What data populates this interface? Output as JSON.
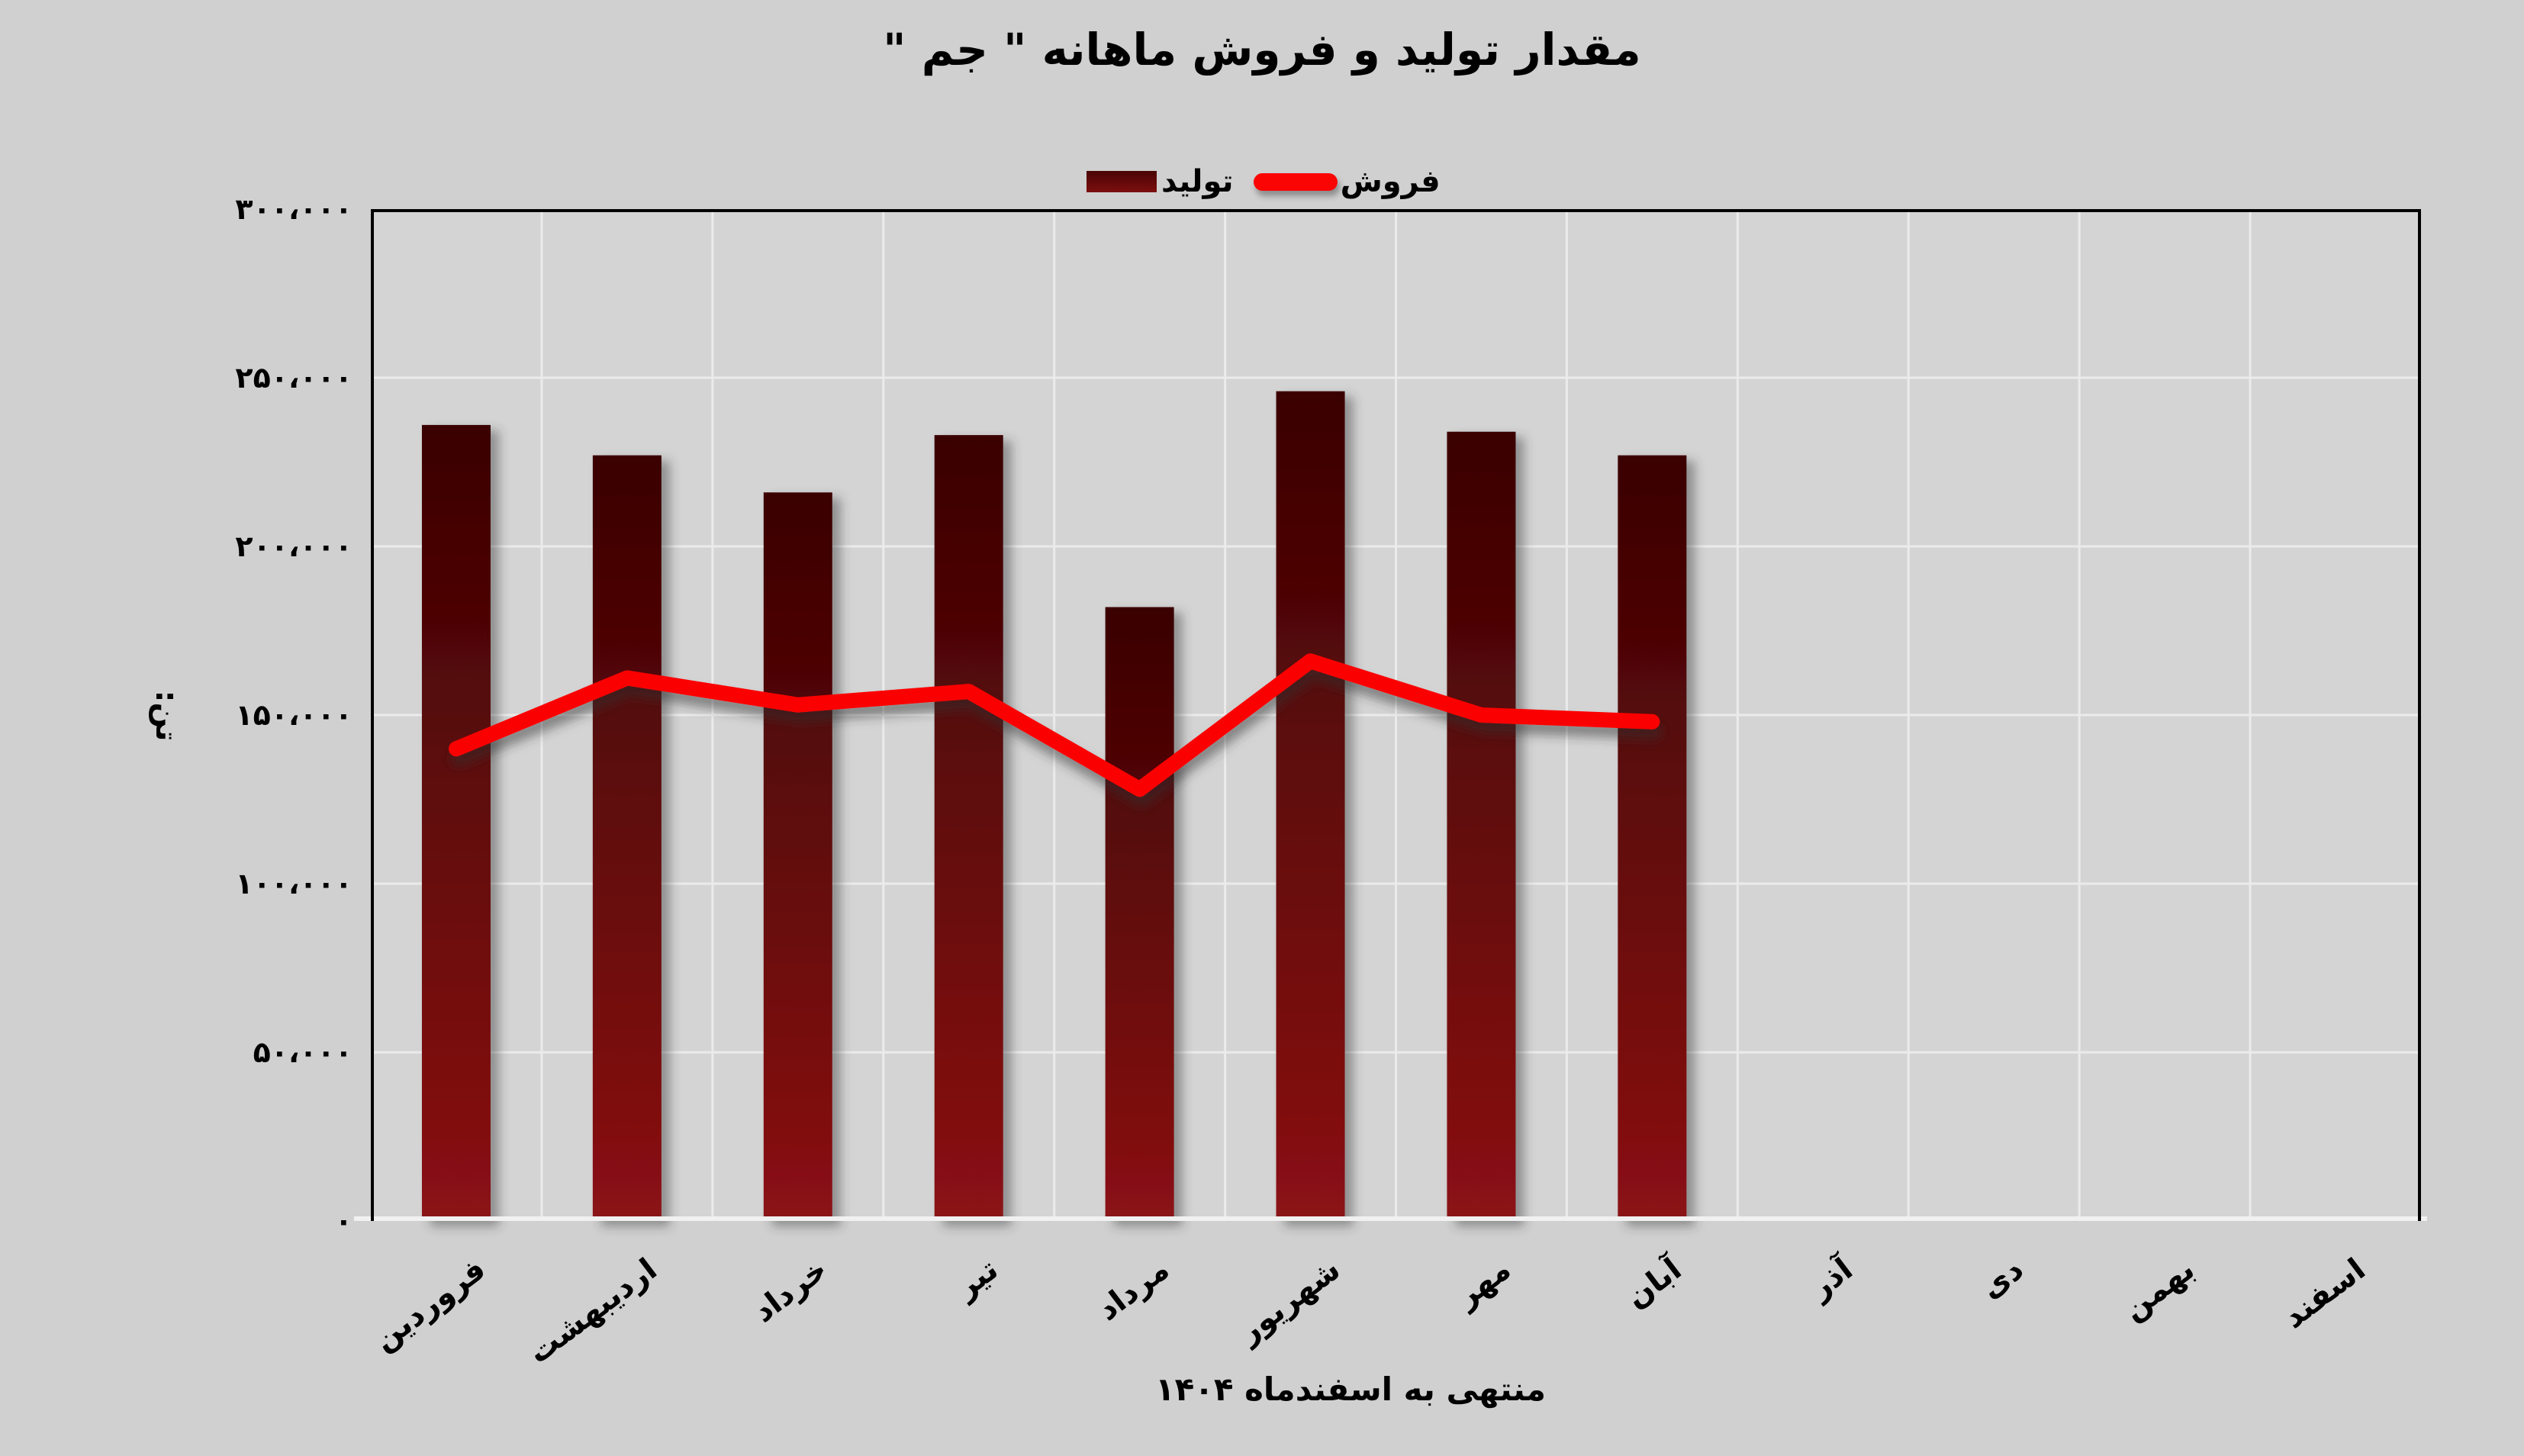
{
  "title": "مقدار تولید و فروش ماهانه \" جم \"",
  "legend": {
    "production_label": "تولید",
    "sales_label": "فروش"
  },
  "y_axis": {
    "title": "تن:",
    "tick_labels": [
      "۳۰۰،۰۰۰",
      "۲۵۰،۰۰۰",
      "۲۰۰،۰۰۰",
      "۱۵۰،۰۰۰",
      "۱۰۰،۰۰۰",
      "۵۰،۰۰۰",
      "۰"
    ]
  },
  "x_axis": {
    "caption": "منتهی به اسفندماه ۱۴۰۴"
  },
  "colors": {
    "background": "#d0d0d0",
    "plot_background": "#d4d4d4",
    "gridline": "#ebebeb",
    "axis_border": "#000000",
    "baseline": "#f1f1f1",
    "bar_gradient_top": "#3a0202",
    "bar_gradient_bottom": "#8b1213",
    "line": "#fb0404",
    "text": "#000000"
  },
  "chart_data": {
    "type": "bar",
    "title": "مقدار تولید و فروش ماهانه \" جم \"",
    "xlabel": "منتهی به اسفندماه ۱۴۰۴",
    "ylabel": "تن:",
    "ylim": [
      0,
      300000
    ],
    "ytick_step": 50000,
    "grid": true,
    "legend_position": "top",
    "categories": [
      "فروردین",
      "اردیبهشت",
      "خرداد",
      "تیر",
      "مرداد",
      "شهریور",
      "مهر",
      "آبان",
      "آذر",
      "دی",
      "بهمن",
      "اسفند"
    ],
    "series": [
      {
        "name": "تولید",
        "type": "bar",
        "values": [
          236000,
          227000,
          216000,
          233000,
          182000,
          246000,
          234000,
          227000,
          null,
          null,
          null,
          null
        ]
      },
      {
        "name": "فروش",
        "type": "line",
        "values": [
          140000,
          161000,
          153000,
          157000,
          128000,
          166000,
          150000,
          148000,
          null,
          null,
          null,
          null
        ]
      }
    ]
  }
}
